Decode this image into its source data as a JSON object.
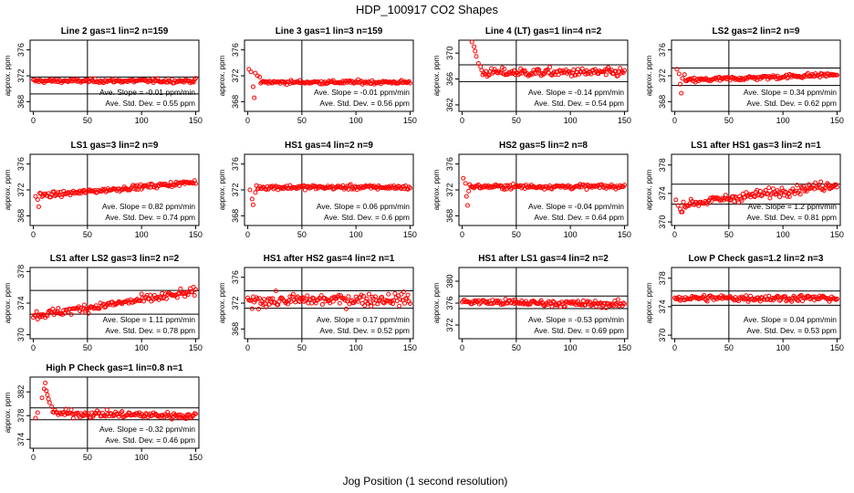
{
  "figure": {
    "title": "HDP_100917  CO2 Shapes",
    "xlabel": "Jog Position (1 second resolution)",
    "point_color": "#ff0000",
    "axis_color": "#000000"
  },
  "chart_data": [
    {
      "type": "scatter",
      "title": "Line 2 gas=1 lin=2 n=159",
      "ylabel": "approx. ppm",
      "xlim": [
        -3,
        153
      ],
      "xticks": [
        0,
        50,
        100,
        150
      ],
      "ylim": [
        366.5,
        377.5
      ],
      "yticks": [
        368,
        372,
        376
      ],
      "hlines": [
        369.2,
        371.8
      ],
      "vline": 50,
      "slope_label": "Ave. Slope =  -0.01  ppm/min",
      "std_label": "Ave. Std. Dev. =  0.55  ppm",
      "mean": 371.2,
      "start": [],
      "trend": 0,
      "noise": 0.25
    },
    {
      "type": "scatter",
      "title": "Line 3 gas=1 lin=3 n=159",
      "ylabel": "approx. ppm",
      "xlim": [
        -3,
        153
      ],
      "xticks": [
        0,
        50,
        100,
        150
      ],
      "ylim": [
        366.5,
        377.5
      ],
      "yticks": [
        368,
        372,
        376
      ],
      "hlines": [],
      "vline": 50,
      "slope_label": "Ave. Slope =  -0.01  ppm/min",
      "std_label": "Ave. Std. Dev. =  0.56  ppm",
      "mean": 371.0,
      "start": [
        [
          1,
          373.0
        ],
        [
          3,
          372.6
        ],
        [
          5,
          370.3
        ],
        [
          6,
          368.6
        ],
        [
          7,
          372.4
        ],
        [
          9,
          372.0
        ],
        [
          11,
          371.8
        ]
      ],
      "trend": 0,
      "noise": 0.25
    },
    {
      "type": "scatter",
      "title": "Line 4 (LT) gas=1 lin=4 n=2",
      "ylabel": "approx. ppm",
      "xlim": [
        -3,
        153
      ],
      "xticks": [
        0,
        50,
        100,
        150
      ],
      "ylim": [
        361,
        372
      ],
      "yticks": [
        362,
        366,
        370
      ],
      "hlines": [
        365.6,
        368.2
      ],
      "vline": 50,
      "slope_label": "Ave. Slope =  -0.14  ppm/min",
      "std_label": "Ave. Std. Dev. =  0.54  ppm",
      "mean": 367.0,
      "start": [
        [
          9,
          371.9
        ],
        [
          11,
          371.0
        ],
        [
          12,
          370.3
        ],
        [
          13,
          369.5
        ],
        [
          15,
          368.4
        ],
        [
          17,
          367.9
        ]
      ],
      "trend": 0,
      "noise": 0.55
    },
    {
      "type": "scatter",
      "title": "LS2 gas=2 lin=2 n=9",
      "ylabel": "approx. ppm",
      "xlim": [
        -3,
        153
      ],
      "xticks": [
        0,
        50,
        100,
        150
      ],
      "ylim": [
        366.5,
        377.5
      ],
      "yticks": [
        368,
        372,
        376
      ],
      "hlines": [
        370.5,
        373.2
      ],
      "vline": 50,
      "slope_label": "Ave. Slope =  0.34  ppm/min",
      "std_label": "Ave. Std. Dev. =  0.62  ppm",
      "mean": 371.7,
      "start": [
        [
          2,
          373.0
        ],
        [
          4,
          372.3
        ],
        [
          5,
          370.7
        ],
        [
          6,
          369.3
        ],
        [
          7,
          371.6
        ],
        [
          9,
          372.2
        ]
      ],
      "trend": 1.0,
      "noise": 0.3
    },
    {
      "type": "scatter",
      "title": "LS1 gas=3 lin=2 n=9",
      "ylabel": "approx. ppm",
      "xlim": [
        -3,
        153
      ],
      "xticks": [
        0,
        50,
        100,
        150
      ],
      "ylim": [
        366.5,
        377.5
      ],
      "yticks": [
        368,
        372,
        376
      ],
      "hlines": [],
      "vline": 50,
      "slope_label": "Ave. Slope =  0.82  ppm/min",
      "std_label": "Ave. Std. Dev. =  0.74  ppm",
      "mean": 372.1,
      "start": [
        [
          2,
          371.0
        ],
        [
          4,
          370.5
        ],
        [
          5,
          369.4
        ],
        [
          6,
          371.5
        ]
      ],
      "trend": 2.2,
      "noise": 0.3
    },
    {
      "type": "scatter",
      "title": "HS1 gas=4 lin=2 n=9",
      "ylabel": "approx. ppm",
      "xlim": [
        -3,
        153
      ],
      "xticks": [
        0,
        50,
        100,
        150
      ],
      "ylim": [
        366.5,
        377.5
      ],
      "yticks": [
        368,
        372,
        376
      ],
      "hlines": [],
      "vline": 50,
      "slope_label": "Ave. Slope =  0.06  ppm/min",
      "std_label": "Ave. Std. Dev. =  0.6  ppm",
      "mean": 372.4,
      "start": [
        [
          2,
          372.0
        ],
        [
          4,
          370.6
        ],
        [
          5,
          369.7
        ],
        [
          7,
          371.6
        ]
      ],
      "trend": 0,
      "noise": 0.3
    },
    {
      "type": "scatter",
      "title": "HS2 gas=5 lin=2 n=8",
      "ylabel": "approx. ppm",
      "xlim": [
        -3,
        153
      ],
      "xticks": [
        0,
        50,
        100,
        150
      ],
      "ylim": [
        366.5,
        377.5
      ],
      "yticks": [
        368,
        372,
        376
      ],
      "hlines": [],
      "vline": 50,
      "slope_label": "Ave. Slope =  -0.04  ppm/min",
      "std_label": "Ave. Std. Dev. =  0.64  ppm",
      "mean": 372.5,
      "start": [
        [
          1,
          373.8
        ],
        [
          3,
          373.0
        ],
        [
          4,
          371.0
        ],
        [
          5,
          369.6
        ],
        [
          6,
          371.8
        ]
      ],
      "trend": 0,
      "noise": 0.3
    },
    {
      "type": "scatter",
      "title": "LS1 after HS1 gas=3 lin=2 n=1",
      "ylabel": "approx. ppm",
      "xlim": [
        -3,
        153
      ],
      "xticks": [
        0,
        50,
        100,
        150
      ],
      "ylim": [
        369.5,
        379.5
      ],
      "yticks": [
        370,
        374,
        378
      ],
      "hlines": [
        372.5,
        375.3
      ],
      "vline": 50,
      "slope_label": "Ave. Slope =  1.2  ppm/min",
      "std_label": "Ave. Std. Dev. =  0.81  ppm",
      "mean": 373.8,
      "start": [
        [
          1,
          373.1
        ],
        [
          3,
          372.3
        ],
        [
          5,
          371.8
        ],
        [
          6,
          371.4
        ]
      ],
      "trend": 3.0,
      "noise": 0.55
    },
    {
      "type": "scatter",
      "title": "LS1 after LS2 gas=3 lin=2 n=2",
      "ylabel": "approx. ppm",
      "xlim": [
        -3,
        153
      ],
      "xticks": [
        0,
        50,
        100,
        150
      ],
      "ylim": [
        369.5,
        378.5
      ],
      "yticks": [
        370,
        374,
        378
      ],
      "hlines": [
        372.6,
        375.6
      ],
      "vline": 50,
      "slope_label": "Ave. Slope =  1.11  ppm/min",
      "std_label": "Ave. Std. Dev. =  0.78  ppm",
      "mean": 373.9,
      "start": [],
      "trend": 3.0,
      "noise": 0.45
    },
    {
      "type": "scatter",
      "title": "HS1 after HS2 gas=4 lin=2 n=1",
      "ylabel": "approx. ppm",
      "xlim": [
        -3,
        153
      ],
      "xticks": [
        0,
        50,
        100,
        150
      ],
      "ylim": [
        366.5,
        377.5
      ],
      "yticks": [
        368,
        372,
        376
      ],
      "hlines": [
        371.2,
        373.9
      ],
      "vline": 50,
      "slope_label": "Ave. Slope =  0.17  ppm/min",
      "std_label": "Ave. Std. Dev. =  0.52  ppm",
      "mean": 372.5,
      "start": [],
      "trend": 0.3,
      "noise": 0.8
    },
    {
      "type": "scatter",
      "title": "HS1 after LS1 gas=4 lin=2 n=2",
      "ylabel": "approx. ppm",
      "xlim": [
        -3,
        153
      ],
      "xticks": [
        0,
        50,
        100,
        150
      ],
      "ylim": [
        369.5,
        382.5
      ],
      "yticks": [
        372,
        376,
        380
      ],
      "hlines": [
        375.0,
        377.3
      ],
      "vline": 50,
      "slope_label": "Ave. Slope =  -0.53  ppm/min",
      "std_label": "Ave. Std. Dev. =  0.69  ppm",
      "mean": 376.0,
      "start": [],
      "trend": -0.5,
      "noise": 0.5
    },
    {
      "type": "scatter",
      "title": "Low P Check gas=1.2 lin=2 n=3",
      "ylabel": "approx. ppm",
      "xlim": [
        -3,
        153
      ],
      "xticks": [
        0,
        50,
        100,
        150
      ],
      "ylim": [
        369.5,
        379.5
      ],
      "yticks": [
        370,
        374,
        378
      ],
      "hlines": [
        374.2,
        376.2
      ],
      "vline": 50,
      "slope_label": "Ave. Slope =  0.04  ppm/min",
      "std_label": "Ave. Std. Dev. =  0.53  ppm",
      "mean": 375.2,
      "start": [],
      "trend": 0,
      "noise": 0.4
    },
    {
      "type": "scatter",
      "title": "High P Check gas=1 lin=0.8 n=1",
      "ylabel": "approx. ppm",
      "xlim": [
        -3,
        153
      ],
      "xticks": [
        0,
        50,
        100,
        150
      ],
      "ylim": [
        372.5,
        384.5
      ],
      "yticks": [
        374,
        378,
        382
      ],
      "hlines": [
        377.3,
        379.3
      ],
      "vline": 50,
      "slope_label": "Ave. Slope =  -0.32  ppm/min",
      "std_label": "Ave. Std. Dev. =  0.46  ppm",
      "mean": 378.2,
      "start": [
        [
          2,
          377.6
        ],
        [
          4,
          378.5
        ],
        [
          8,
          381.0
        ],
        [
          10,
          382.5
        ],
        [
          11,
          383.5
        ],
        [
          12,
          382.2
        ],
        [
          13,
          381.5
        ],
        [
          14,
          380.8
        ],
        [
          15,
          380.2
        ],
        [
          17,
          379.5
        ]
      ],
      "trend": -0.5,
      "noise": 0.5
    }
  ]
}
